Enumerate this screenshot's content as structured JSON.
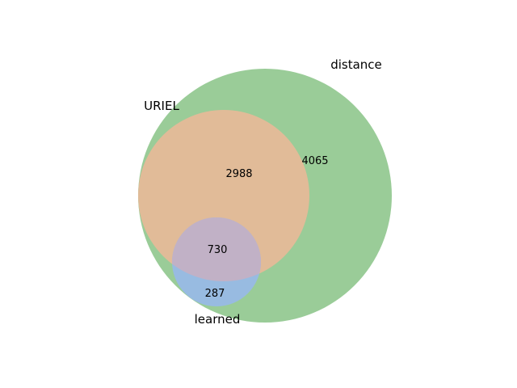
{
  "sets": [
    {
      "id": "distance",
      "label": "distance",
      "color": "#9ACC98"
    },
    {
      "id": "uriel",
      "label": "URIEL",
      "color": "#E1BB98"
    },
    {
      "id": "learned",
      "label": "learned",
      "color": "#98BBE1"
    }
  ],
  "overlap_colors": {
    "distance_uriel_learned": "#C1B1C6",
    "distance_learned": "#98BBE1"
  },
  "regions": {
    "distance_only": "4065",
    "distance_uriel": "2988",
    "distance_uriel_learned": "730",
    "distance_learned": "287"
  }
}
